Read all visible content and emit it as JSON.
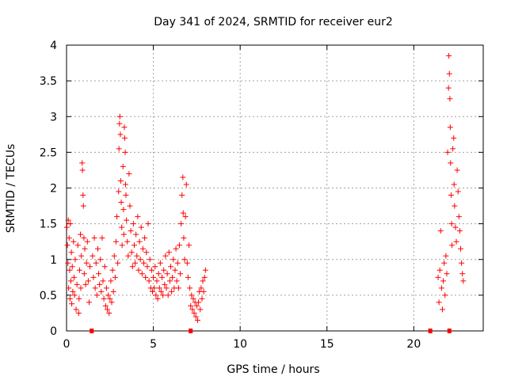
{
  "chart_data": {
    "type": "scatter",
    "title": "Day 341 of 2024, SRMTID for receiver eur2",
    "xlabel": "GPS time / hours",
    "ylabel": "SRMTID / TECUs",
    "xlim": [
      0,
      24
    ],
    "ylim": [
      0,
      4
    ],
    "x_ticks": [
      0,
      5,
      10,
      15,
      20
    ],
    "y_ticks": [
      0,
      0.5,
      1,
      1.5,
      2,
      2.5,
      3,
      3.5,
      4
    ],
    "x_tick_labels": [
      "0",
      "5",
      "10",
      "15",
      "20"
    ],
    "y_tick_labels": [
      "0",
      "0.5",
      "1",
      "1.5",
      "2",
      "2.5",
      "3",
      "3.5",
      "4"
    ],
    "grid": true,
    "marker": "plus",
    "color": "#ff0000",
    "series": [
      {
        "name": "SRMTID",
        "points": [
          [
            0.02,
            1.45
          ],
          [
            0.05,
            1.2
          ],
          [
            0.08,
            0.95
          ],
          [
            0.1,
            1.55
          ],
          [
            0.12,
            0.6
          ],
          [
            0.15,
            1.3
          ],
          [
            0.18,
            0.85
          ],
          [
            0.2,
            0.45
          ],
          [
            0.22,
            1.5
          ],
          [
            0.25,
            0.7
          ],
          [
            0.28,
            1.1
          ],
          [
            0.3,
            0.38
          ],
          [
            0.33,
            0.9
          ],
          [
            0.36,
            0.55
          ],
          [
            0.4,
            1.25
          ],
          [
            0.43,
            0.75
          ],
          [
            0.46,
            0.5
          ],
          [
            0.5,
            1.0
          ],
          [
            0.55,
            0.3
          ],
          [
            0.6,
            0.65
          ],
          [
            0.65,
            1.2
          ],
          [
            0.7,
            0.25
          ],
          [
            0.72,
            0.45
          ],
          [
            0.75,
            0.85
          ],
          [
            0.8,
            1.35
          ],
          [
            0.82,
            0.6
          ],
          [
            0.85,
            1.05
          ],
          [
            0.9,
            2.35
          ],
          [
            0.92,
            2.25
          ],
          [
            0.95,
            1.9
          ],
          [
            0.97,
            1.75
          ],
          [
            1.0,
            1.3
          ],
          [
            1.02,
            0.8
          ],
          [
            1.05,
            1.15
          ],
          [
            1.1,
            0.65
          ],
          [
            1.15,
            0.95
          ],
          [
            1.2,
            1.25
          ],
          [
            1.25,
            0.7
          ],
          [
            1.3,
            0.4
          ],
          [
            1.35,
            0.9
          ],
          [
            1.5,
            1.05
          ],
          [
            1.55,
            0.75
          ],
          [
            1.6,
            1.3
          ],
          [
            1.65,
            0.6
          ],
          [
            1.7,
            0.95
          ],
          [
            1.75,
            0.5
          ],
          [
            1.8,
            1.15
          ],
          [
            1.85,
            0.8
          ],
          [
            1.9,
            0.65
          ],
          [
            1.95,
            1.0
          ],
          [
            2.0,
            0.55
          ],
          [
            2.05,
            1.3
          ],
          [
            2.1,
            0.7
          ],
          [
            2.15,
            0.45
          ],
          [
            2.2,
            0.9
          ],
          [
            2.25,
            0.35
          ],
          [
            2.3,
            0.6
          ],
          [
            2.35,
            0.3
          ],
          [
            2.4,
            0.5
          ],
          [
            2.45,
            0.25
          ],
          [
            2.5,
            0.45
          ],
          [
            2.55,
            0.7
          ],
          [
            2.6,
            0.4
          ],
          [
            2.65,
            0.85
          ],
          [
            2.7,
            0.55
          ],
          [
            2.75,
            1.05
          ],
          [
            2.8,
            0.75
          ],
          [
            2.85,
            1.25
          ],
          [
            2.9,
            1.6
          ],
          [
            2.95,
            0.95
          ],
          [
            3.0,
            1.95
          ],
          [
            3.02,
            2.55
          ],
          [
            3.05,
            2.9
          ],
          [
            3.07,
            3.0
          ],
          [
            3.1,
            2.75
          ],
          [
            3.12,
            2.1
          ],
          [
            3.15,
            1.8
          ],
          [
            3.18,
            1.45
          ],
          [
            3.2,
            1.2
          ],
          [
            3.25,
            2.3
          ],
          [
            3.28,
            1.7
          ],
          [
            3.3,
            1.35
          ],
          [
            3.33,
            2.85
          ],
          [
            3.35,
            2.7
          ],
          [
            3.38,
            2.5
          ],
          [
            3.4,
            2.05
          ],
          [
            3.42,
            1.9
          ],
          [
            3.45,
            1.55
          ],
          [
            3.5,
            1.25
          ],
          [
            3.55,
            1.05
          ],
          [
            3.6,
            2.2
          ],
          [
            3.65,
            1.75
          ],
          [
            3.7,
            1.4
          ],
          [
            3.75,
            1.1
          ],
          [
            3.8,
            0.9
          ],
          [
            3.85,
            1.5
          ],
          [
            3.9,
            1.2
          ],
          [
            3.95,
            0.95
          ],
          [
            4.0,
            1.35
          ],
          [
            4.05,
            1.05
          ],
          [
            4.1,
            1.6
          ],
          [
            4.15,
            0.85
          ],
          [
            4.2,
            1.25
          ],
          [
            4.25,
            1.0
          ],
          [
            4.3,
            1.45
          ],
          [
            4.35,
            0.8
          ],
          [
            4.4,
            1.15
          ],
          [
            4.45,
            0.95
          ],
          [
            4.5,
            1.3
          ],
          [
            4.55,
            0.75
          ],
          [
            4.6,
            1.1
          ],
          [
            4.65,
            0.9
          ],
          [
            4.7,
            1.5
          ],
          [
            4.75,
            0.7
          ],
          [
            4.8,
            1.0
          ],
          [
            4.85,
            0.6
          ],
          [
            4.9,
            0.85
          ],
          [
            4.95,
            0.55
          ],
          [
            5.0,
            0.75
          ],
          [
            5.05,
            0.6
          ],
          [
            5.1,
            0.9
          ],
          [
            5.15,
            0.5
          ],
          [
            5.2,
            0.7
          ],
          [
            5.25,
            0.45
          ],
          [
            5.3,
            0.8
          ],
          [
            5.35,
            0.6
          ],
          [
            5.4,
            0.95
          ],
          [
            5.45,
            0.55
          ],
          [
            5.5,
            0.75
          ],
          [
            5.55,
            0.5
          ],
          [
            5.6,
            0.85
          ],
          [
            5.65,
            0.65
          ],
          [
            5.7,
            1.05
          ],
          [
            5.75,
            0.6
          ],
          [
            5.8,
            0.8
          ],
          [
            5.85,
            0.5
          ],
          [
            5.9,
            1.1
          ],
          [
            5.95,
            0.7
          ],
          [
            6.0,
            0.9
          ],
          [
            6.05,
            0.55
          ],
          [
            6.1,
            0.75
          ],
          [
            6.15,
            1.0
          ],
          [
            6.2,
            0.6
          ],
          [
            6.25,
            0.85
          ],
          [
            6.3,
            1.15
          ],
          [
            6.35,
            0.7
          ],
          [
            6.4,
            0.95
          ],
          [
            6.45,
            0.6
          ],
          [
            6.5,
            1.2
          ],
          [
            6.55,
            0.8
          ],
          [
            6.6,
            1.5
          ],
          [
            6.65,
            1.9
          ],
          [
            6.7,
            2.15
          ],
          [
            6.72,
            1.65
          ],
          [
            6.75,
            1.3
          ],
          [
            6.8,
            1.0
          ],
          [
            6.85,
            1.6
          ],
          [
            6.9,
            2.05
          ],
          [
            6.95,
            0.95
          ],
          [
            7.0,
            0.75
          ],
          [
            7.05,
            1.2
          ],
          [
            7.1,
            0.6
          ],
          [
            7.15,
            0.35
          ],
          [
            7.2,
            0.5
          ],
          [
            7.25,
            0.3
          ],
          [
            7.3,
            0.45
          ],
          [
            7.35,
            0.25
          ],
          [
            7.4,
            0.4
          ],
          [
            7.45,
            0.2
          ],
          [
            7.5,
            0.35
          ],
          [
            7.55,
            0.15
          ],
          [
            7.6,
            0.4
          ],
          [
            7.65,
            0.55
          ],
          [
            7.7,
            0.3
          ],
          [
            7.75,
            0.6
          ],
          [
            7.8,
            0.45
          ],
          [
            7.85,
            0.7
          ],
          [
            7.9,
            0.55
          ],
          [
            7.95,
            0.75
          ],
          [
            8.0,
            0.85
          ],
          [
            21.4,
            0.75
          ],
          [
            21.45,
            0.4
          ],
          [
            21.5,
            0.85
          ],
          [
            21.55,
            1.4
          ],
          [
            21.6,
            0.6
          ],
          [
            21.65,
            0.3
          ],
          [
            21.7,
            0.7
          ],
          [
            21.75,
            0.95
          ],
          [
            21.8,
            0.5
          ],
          [
            21.85,
            1.05
          ],
          [
            21.9,
            0.8
          ],
          [
            21.95,
            2.5
          ],
          [
            22.0,
            3.4
          ],
          [
            22.02,
            3.85
          ],
          [
            22.05,
            3.6
          ],
          [
            22.08,
            3.25
          ],
          [
            22.1,
            2.85
          ],
          [
            22.12,
            2.35
          ],
          [
            22.15,
            1.9
          ],
          [
            22.18,
            1.5
          ],
          [
            22.2,
            1.2
          ],
          [
            22.25,
            2.55
          ],
          [
            22.3,
            2.7
          ],
          [
            22.32,
            2.05
          ],
          [
            22.35,
            1.75
          ],
          [
            22.4,
            1.45
          ],
          [
            22.45,
            1.25
          ],
          [
            22.5,
            2.25
          ],
          [
            22.55,
            1.95
          ],
          [
            22.6,
            1.6
          ],
          [
            22.65,
            1.4
          ],
          [
            22.7,
            1.15
          ],
          [
            22.75,
            0.95
          ],
          [
            22.8,
            0.8
          ],
          [
            22.85,
            0.7
          ]
        ]
      },
      {
        "name": "zero-level markers",
        "points": [
          [
            1.45,
            0
          ],
          [
            7.15,
            0
          ],
          [
            20.95,
            0
          ],
          [
            22.05,
            0
          ]
        ]
      }
    ]
  }
}
